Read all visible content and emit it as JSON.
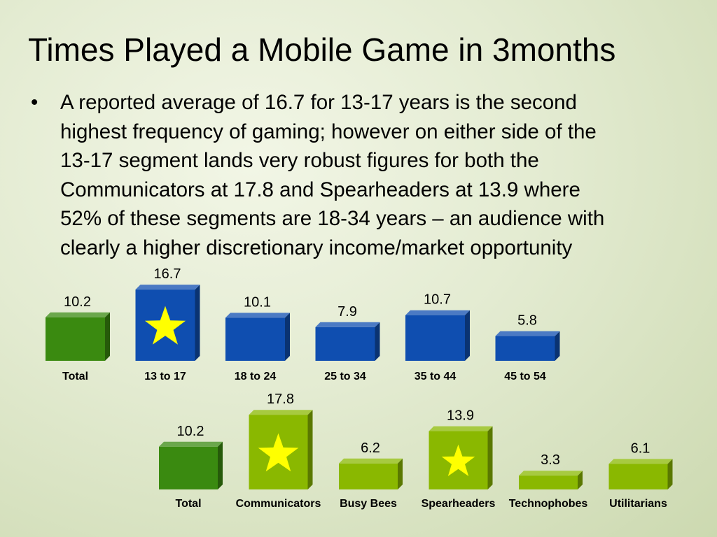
{
  "title": "Times Played a Mobile Game in 3months",
  "bullet": {
    "marker": "•",
    "lines": [
      "A reported average of 16.7 for 13-17 years is the second",
      "highest frequency of gaming; however on either side of the",
      "13-17 segment lands very robust figures for both the",
      "Communicators at 17.8 and Spearheaders at 13.9 where",
      "52% of these segments are 18-34 years – an audience with",
      "clearly a higher discretionary income/market opportunity"
    ]
  },
  "chart_data": [
    {
      "type": "bar",
      "title": "",
      "xlabel": "",
      "ylabel": "",
      "categories": [
        "Total",
        "13 to 17",
        "18 to 24",
        "25 to 34",
        "35 to 44",
        "45 to 54"
      ],
      "values": [
        10.2,
        16.7,
        10.1,
        7.9,
        10.7,
        5.8
      ],
      "value_labels": [
        "10.2",
        "16.7",
        "10.1",
        "7.9",
        "10.7",
        "5.8"
      ],
      "highlight": [
        false,
        true,
        false,
        false,
        false,
        false
      ],
      "bar_colors": [
        "#3a8a10",
        "#0f4eb0",
        "#0f4eb0",
        "#0f4eb0",
        "#0f4eb0",
        "#0f4eb0"
      ],
      "star_color": "#ffff00",
      "grid": false,
      "legend": "none"
    },
    {
      "type": "bar",
      "title": "",
      "xlabel": "",
      "ylabel": "",
      "categories": [
        "Total",
        "Communicators",
        "Busy Bees",
        "Spearheaders",
        "Technophobes",
        "Utilitarians"
      ],
      "values": [
        10.2,
        17.8,
        6.2,
        13.9,
        3.3,
        6.1
      ],
      "value_labels": [
        "10.2",
        "17.8",
        "6.2",
        "13.9",
        "3.3",
        "6.1"
      ],
      "highlight": [
        false,
        true,
        false,
        true,
        false,
        false
      ],
      "bar_colors": [
        "#3a8a10",
        "#8ab800",
        "#8ab800",
        "#8ab800",
        "#8ab800",
        "#8ab800"
      ],
      "star_color": "#ffff00",
      "grid": false,
      "legend": "none"
    }
  ]
}
